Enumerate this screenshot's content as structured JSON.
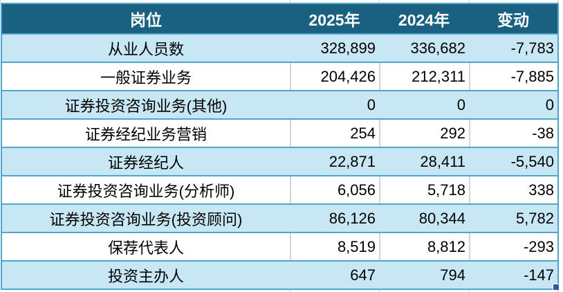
{
  "table": {
    "columns": [
      "岗位",
      "2025年",
      "2024年",
      "变动"
    ],
    "rows": [
      {
        "label": "从业人员数",
        "y2025": "328,899",
        "y2024": "336,682",
        "change": "-7,783"
      },
      {
        "label": "一般证券业务",
        "y2025": "204,426",
        "y2024": "212,311",
        "change": "-7,885"
      },
      {
        "label": "证券投资咨询业务(其他)",
        "y2025": "0",
        "y2024": "0",
        "change": "0"
      },
      {
        "label": "证券经纪业务营销",
        "y2025": "254",
        "y2024": "292",
        "change": "-38"
      },
      {
        "label": "证券经纪人",
        "y2025": "22,871",
        "y2024": "28,411",
        "change": "-5,540"
      },
      {
        "label": "证券投资咨询业务(分析师)",
        "y2025": "6,056",
        "y2024": "5,718",
        "change": "338"
      },
      {
        "label": "证券投资咨询业务(投资顾问)",
        "y2025": "86,126",
        "y2024": "80,344",
        "change": "5,782"
      },
      {
        "label": "保荐代表人",
        "y2025": "8,519",
        "y2024": "8,812",
        "change": "-293"
      },
      {
        "label": "投资主办人",
        "y2025": "647",
        "y2024": "794",
        "change": "-147"
      }
    ]
  },
  "colors": {
    "header_bg": "#1A6080",
    "header_text": "#FFFFFF",
    "band_row_bg": "#C6E7F3",
    "plain_row_bg": "#FFFFFF",
    "row_border": "#4FA6C9",
    "column_divider": "#D4D4D4",
    "gridline": "#C9CED2",
    "fill_handle": "#2E5B9C",
    "text": "#000000"
  }
}
